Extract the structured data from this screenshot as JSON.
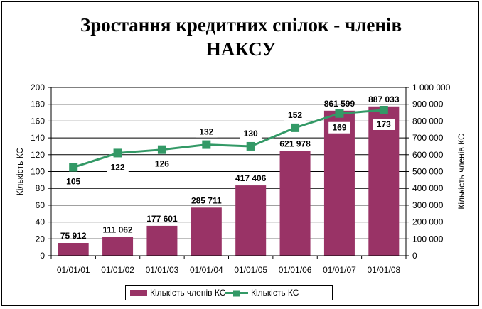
{
  "chart_data": {
    "type": "bar+line",
    "title": "Зростання кредитних спілок - членів\nНАКСУ",
    "categories": [
      "01/01/01",
      "01/01/02",
      "01/01/03",
      "01/01/04",
      "01/01/05",
      "01/01/06",
      "01/01/07",
      "01/01/08"
    ],
    "series": [
      {
        "name": "Кількість членів КС",
        "type": "bar",
        "axis": "right",
        "values": [
          75912,
          111062,
          177601,
          285711,
          417406,
          621978,
          861599,
          887033
        ],
        "labels": [
          "75 912",
          "111 062",
          "177 601",
          "285 711",
          "417 406",
          "621 978",
          "861 599",
          "887 033"
        ]
      },
      {
        "name": "Кількість КС",
        "type": "line",
        "axis": "left",
        "values": [
          105,
          122,
          126,
          132,
          130,
          152,
          169,
          173
        ],
        "labels": [
          "105",
          "122",
          "126",
          "132",
          "130",
          "152",
          "169",
          "173"
        ]
      }
    ],
    "left_axis": {
      "label": "Кількість КС",
      "min": 0,
      "max": 200,
      "step": 20,
      "ticks": [
        "0",
        "20",
        "40",
        "60",
        "80",
        "100",
        "120",
        "140",
        "160",
        "180",
        "200"
      ]
    },
    "right_axis": {
      "label": "Кількість членів КС",
      "min": 0,
      "max": 1000000,
      "step": 100000,
      "ticks": [
        "0",
        "100 000",
        "200 000",
        "300 000",
        "400 000",
        "500 000",
        "600 000",
        "700 000",
        "800 000",
        "900 000",
        "1 000 000"
      ]
    },
    "grid": true,
    "legend_position": "bottom",
    "colors": {
      "bar": "#993366",
      "line": "#339966",
      "marker": "#339966"
    }
  }
}
